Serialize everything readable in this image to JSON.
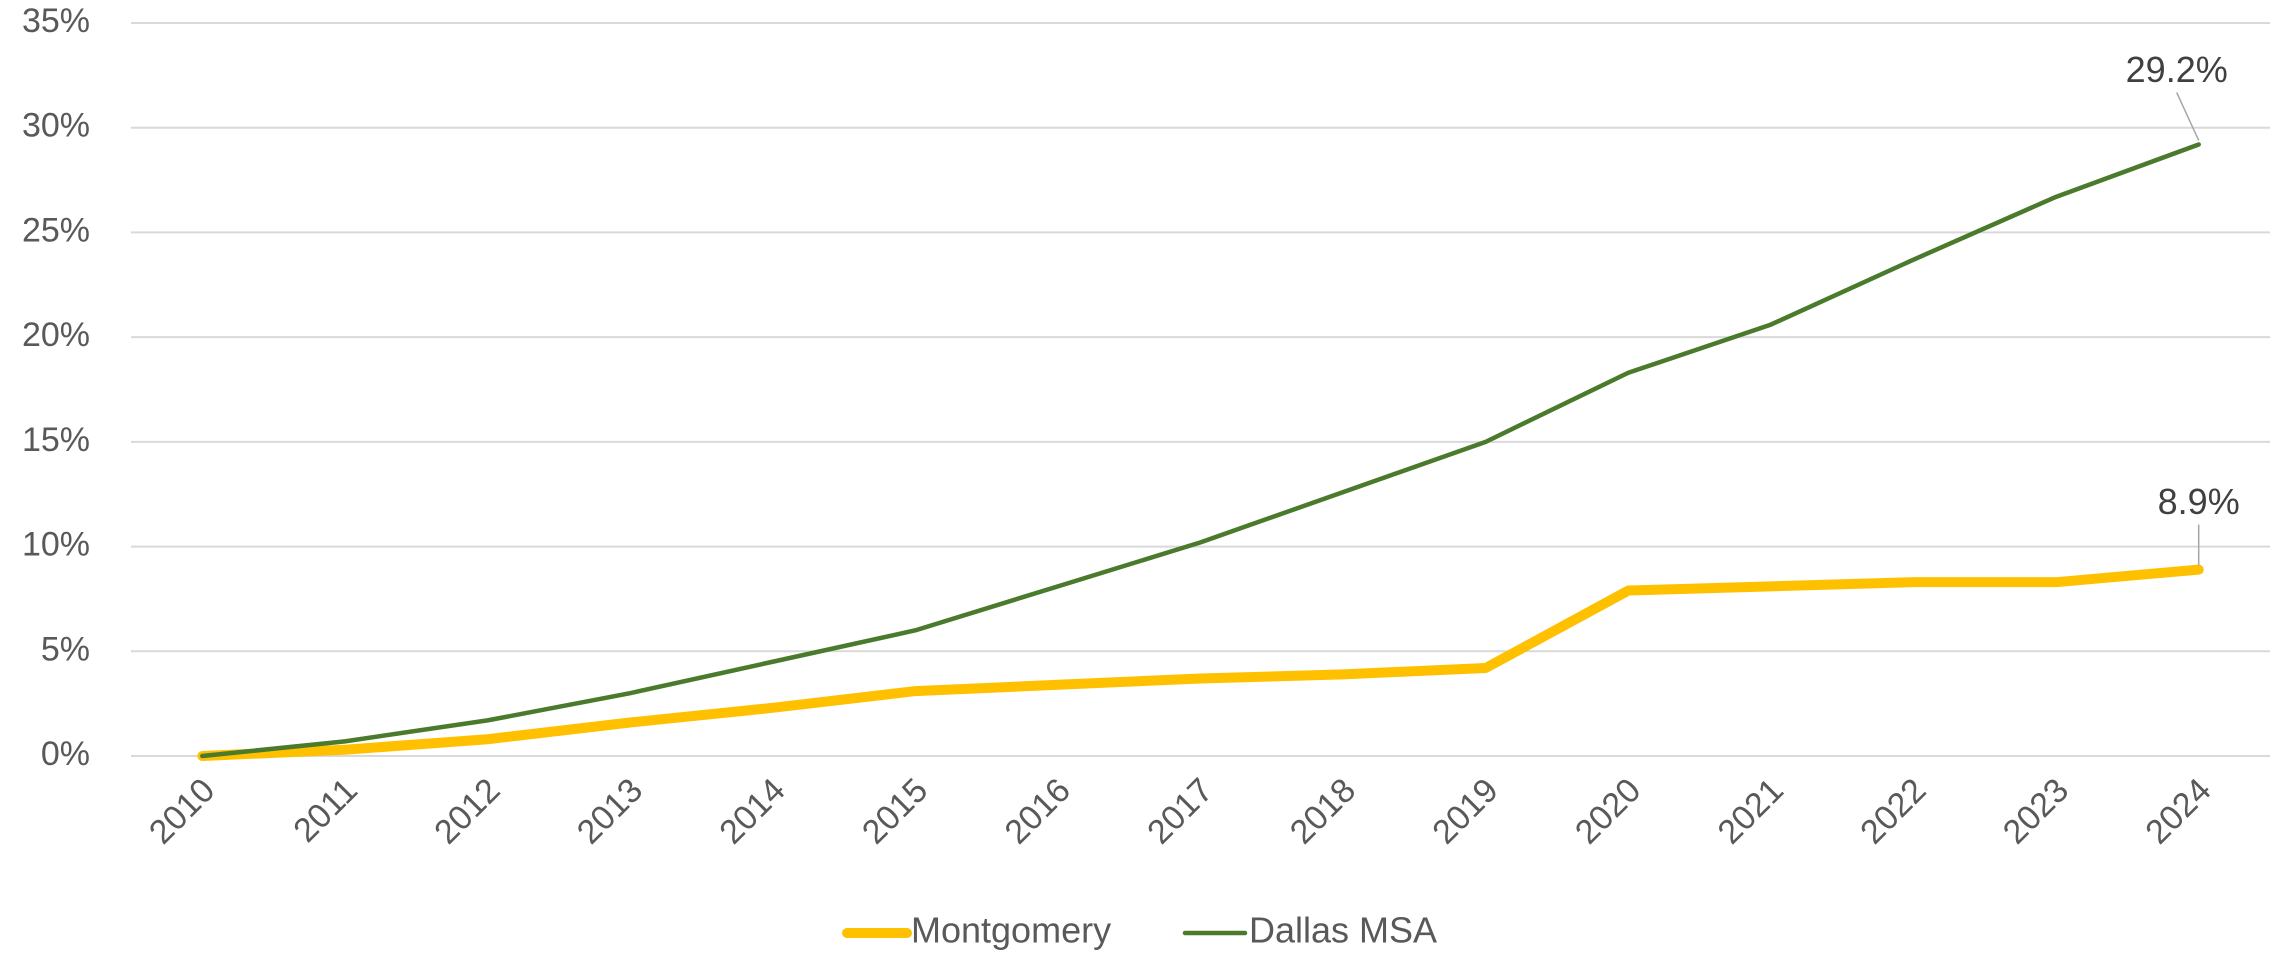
{
  "chart_data": {
    "type": "line",
    "categories": [
      "2010",
      "2011",
      "2012",
      "2013",
      "2014",
      "2015",
      "2016",
      "2017",
      "2018",
      "2019",
      "2020",
      "2021",
      "2022",
      "2023",
      "2024"
    ],
    "series": [
      {
        "name": "Montgomery",
        "color": "#FFC000",
        "values": [
          0,
          0.3,
          0.8,
          1.6,
          2.3,
          3.1,
          3.4,
          3.7,
          3.9,
          4.2,
          7.9,
          8.1,
          8.3,
          8.3,
          8.9
        ],
        "value_labels": [
          null,
          null,
          null,
          null,
          null,
          null,
          null,
          null,
          null,
          null,
          null,
          null,
          null,
          null,
          "8.9%"
        ]
      },
      {
        "name": "Dallas MSA",
        "color": "#4A7A2B",
        "values": [
          0,
          0.7,
          1.7,
          3.0,
          4.5,
          6.0,
          8.1,
          10.2,
          12.6,
          15.0,
          18.3,
          20.6,
          23.7,
          26.7,
          29.2
        ],
        "value_labels": [
          null,
          null,
          null,
          null,
          null,
          null,
          null,
          null,
          null,
          null,
          null,
          null,
          null,
          null,
          "29.2%"
        ]
      }
    ],
    "ylim": [
      0,
      35
    ],
    "yticks": [
      {
        "value": 0,
        "label": "0%"
      },
      {
        "value": 5,
        "label": "5%"
      },
      {
        "value": 10,
        "label": "10%"
      },
      {
        "value": 15,
        "label": "15%"
      },
      {
        "value": 20,
        "label": "20%"
      },
      {
        "value": 25,
        "label": "25%"
      },
      {
        "value": 30,
        "label": "30%"
      },
      {
        "value": 35,
        "label": "35%"
      }
    ],
    "grid": true,
    "legend": "bottom"
  }
}
